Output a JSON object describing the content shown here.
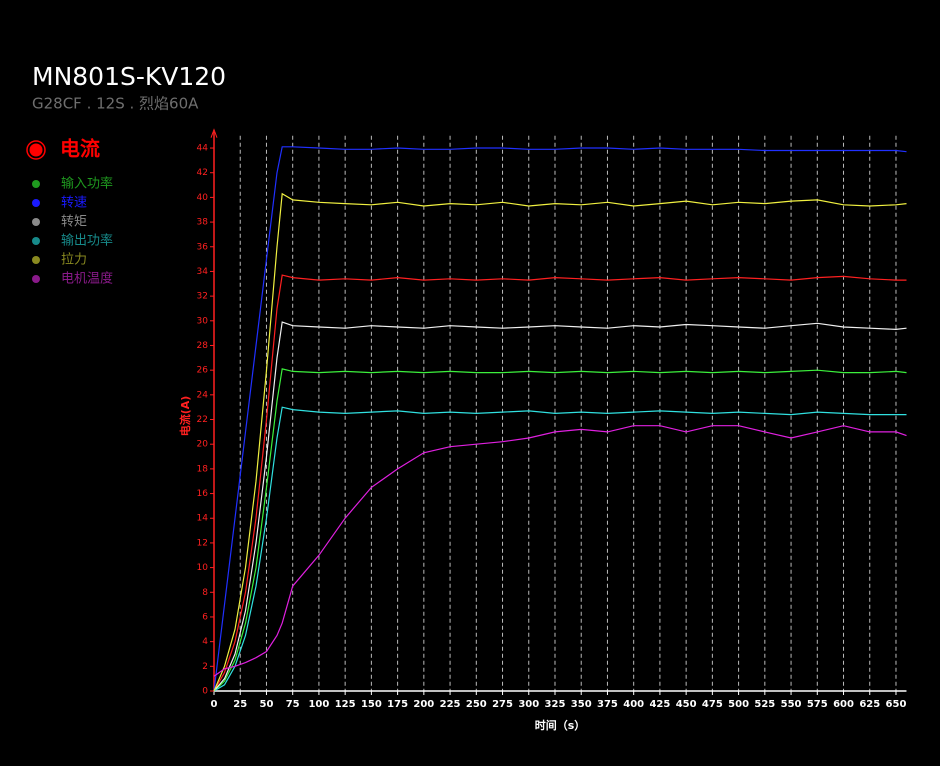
{
  "chart_data": {
    "type": "line",
    "title": "MN801S-KV120",
    "subtitle": "G28CF . 12S . 烈焰60A",
    "x_label": "时间（s）",
    "y_label": "电流(A)",
    "x": [
      0,
      10,
      20,
      30,
      40,
      50,
      60,
      65,
      75,
      100,
      125,
      150,
      175,
      200,
      225,
      250,
      275,
      300,
      325,
      350,
      375,
      400,
      425,
      450,
      475,
      500,
      525,
      550,
      575,
      600,
      625,
      650,
      660
    ],
    "xlim": [
      0,
      660
    ],
    "xticks": [
      0,
      25,
      50,
      75,
      100,
      125,
      150,
      175,
      200,
      225,
      250,
      275,
      300,
      325,
      350,
      375,
      400,
      425,
      450,
      475,
      500,
      525,
      550,
      575,
      600,
      625,
      650
    ],
    "ylim": [
      0,
      45
    ],
    "yticks": [
      0,
      2,
      4,
      6,
      8,
      10,
      12,
      14,
      16,
      18,
      20,
      22,
      24,
      26,
      28,
      30,
      32,
      34,
      36,
      38,
      40,
      42,
      44
    ],
    "grid": "x",
    "series": [
      {
        "name": "电流",
        "color": "#ff2020",
        "legend_color": "#ff0000",
        "values": [
          0,
          1.5,
          4,
          8,
          14,
          22,
          31,
          33.7,
          33.5,
          33.3,
          33.4,
          33.3,
          33.5,
          33.3,
          33.4,
          33.3,
          33.4,
          33.3,
          33.5,
          33.4,
          33.3,
          33.4,
          33.5,
          33.3,
          33.4,
          33.5,
          33.4,
          33.3,
          33.5,
          33.6,
          33.4,
          33.3,
          33.3
        ]
      },
      {
        "name": "输入功率",
        "color": "#3cf03c",
        "legend_color": "#1f9a1f",
        "values": [
          0,
          0.8,
          2.5,
          5.5,
          10,
          16.5,
          23.5,
          26.1,
          25.9,
          25.8,
          25.9,
          25.8,
          25.9,
          25.8,
          25.9,
          25.8,
          25.8,
          25.9,
          25.8,
          25.9,
          25.8,
          25.9,
          25.8,
          25.9,
          25.8,
          25.9,
          25.8,
          25.9,
          26,
          25.8,
          25.8,
          25.9,
          25.8
        ]
      },
      {
        "name": "转速",
        "color": "#2030ff",
        "legend_color": "#1a1aff",
        "values": [
          0,
          7,
          14,
          21,
          28,
          35,
          42,
          44.1,
          44.1,
          44.0,
          43.9,
          43.9,
          44.0,
          43.9,
          43.9,
          44.0,
          44.0,
          43.9,
          43.9,
          44.0,
          44.0,
          43.9,
          44.0,
          43.9,
          43.9,
          43.9,
          43.8,
          43.8,
          43.8,
          43.8,
          43.8,
          43.8,
          43.7
        ]
      },
      {
        "name": "转矩",
        "color": "#f0f0f0",
        "legend_color": "#8a8a8a",
        "values": [
          0,
          1,
          3,
          6.5,
          12,
          19,
          27,
          29.9,
          29.6,
          29.5,
          29.4,
          29.6,
          29.5,
          29.4,
          29.6,
          29.5,
          29.4,
          29.5,
          29.6,
          29.5,
          29.4,
          29.6,
          29.5,
          29.7,
          29.6,
          29.5,
          29.4,
          29.6,
          29.8,
          29.5,
          29.4,
          29.3,
          29.4
        ]
      },
      {
        "name": "输出功率",
        "color": "#30e0e0",
        "legend_color": "#178a8a",
        "values": [
          0,
          0.5,
          2,
          4.5,
          8.5,
          14,
          20.5,
          23,
          22.8,
          22.6,
          22.5,
          22.6,
          22.7,
          22.5,
          22.6,
          22.5,
          22.6,
          22.7,
          22.5,
          22.6,
          22.5,
          22.6,
          22.7,
          22.6,
          22.5,
          22.6,
          22.5,
          22.4,
          22.6,
          22.5,
          22.4,
          22.4,
          22.4
        ]
      },
      {
        "name": "拉力",
        "color": "#f0f040",
        "legend_color": "#8a8a20",
        "values": [
          0,
          2,
          5,
          10,
          17,
          26,
          36,
          40.3,
          39.8,
          39.6,
          39.5,
          39.4,
          39.6,
          39.3,
          39.5,
          39.4,
          39.6,
          39.3,
          39.5,
          39.4,
          39.6,
          39.3,
          39.5,
          39.7,
          39.4,
          39.6,
          39.5,
          39.7,
          39.8,
          39.4,
          39.3,
          39.4,
          39.5
        ]
      },
      {
        "name": "电机温度",
        "color": "#e020e0",
        "legend_color": "#8a1a8a",
        "values": [
          1.2,
          1.8,
          2,
          2.3,
          2.7,
          3.2,
          4.5,
          5.5,
          8.5,
          11,
          14,
          16.5,
          18,
          19.3,
          19.8,
          20,
          20.2,
          20.5,
          21,
          21.2,
          21,
          21.5,
          21.5,
          21,
          21.5,
          21.5,
          21,
          20.5,
          21,
          21.5,
          21,
          21,
          20.7
        ]
      }
    ]
  }
}
